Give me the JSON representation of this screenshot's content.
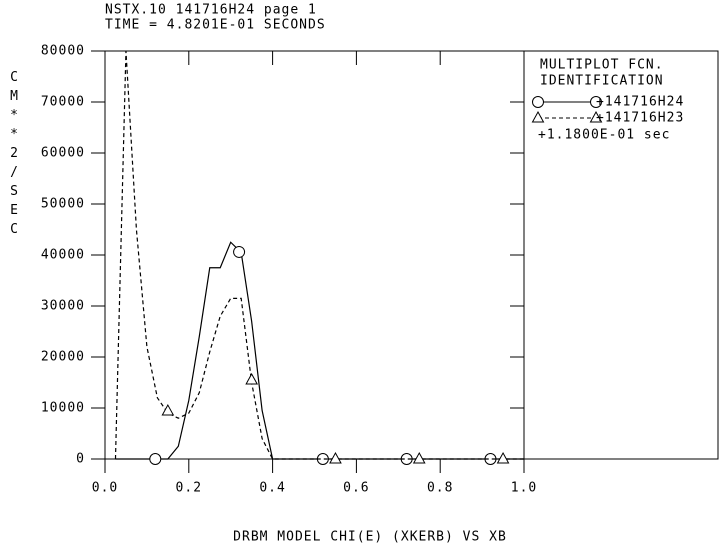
{
  "chart_data": {
    "type": "line",
    "title": "NSTX.10 141716H24 page 1",
    "subtitle": "TIME = 4.8201E-01 SECONDS",
    "x_label": "DRBM MODEL CHI(E) (XKERB) VS XB",
    "y_label": "CM**2/SEC",
    "legend_title": [
      "MULTIPLOT FCN.",
      "IDENTIFICATION"
    ],
    "legend_note": "+1.1800E-01 sec",
    "xlim": [
      0,
      1
    ],
    "ylim": [
      0,
      80000
    ],
    "xticks": [
      {
        "value": 0,
        "label": "0.0"
      },
      0.2,
      0.4,
      0.6,
      0.8,
      {
        "value": 1,
        "label": "1.0"
      }
    ],
    "yticks": [
      0,
      10000,
      20000,
      30000,
      40000,
      50000,
      60000,
      70000,
      80000
    ],
    "x": [
      0.025,
      0.05,
      0.075,
      0.1,
      0.125,
      0.15,
      0.175,
      0.2,
      0.225,
      0.25,
      0.275,
      0.3,
      0.325,
      0.35,
      0.375,
      0.4,
      1.0
    ],
    "series": [
      {
        "name": "+141716H24",
        "color": "#000000",
        "dash": "solid",
        "marker": "circle",
        "values": [
          0,
          0,
          0,
          0,
          0,
          0,
          2500,
          11500,
          24000,
          37500,
          37500,
          42500,
          40500,
          27000,
          9500,
          0,
          0
        ],
        "marker_x": [
          0.12,
          0.32,
          0.52,
          0.72,
          0.92
        ],
        "marker_values": [
          0,
          40600,
          0,
          0,
          0
        ]
      },
      {
        "name": "+141716H23",
        "color": "#000000",
        "dash": "dashed",
        "marker": "triangle",
        "values": [
          0,
          80000,
          45000,
          22000,
          12000,
          9000,
          8000,
          9000,
          13000,
          21000,
          28000,
          31500,
          31500,
          15000,
          4000,
          0,
          0
        ],
        "marker_x": [
          0.15,
          0.35,
          0.55,
          0.75,
          0.95
        ],
        "marker_values": [
          9400,
          15500,
          0,
          0,
          0
        ]
      }
    ]
  }
}
